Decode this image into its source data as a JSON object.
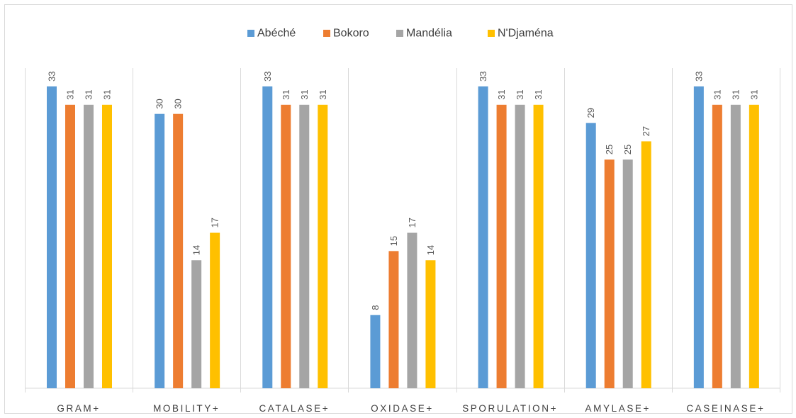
{
  "chart_data": {
    "type": "bar",
    "categories": [
      "GRAM+",
      "MOBILITY+",
      "CATALASE+",
      "OXIDASE+",
      "SPORULATION+",
      "AMYLASE+",
      "CASEINASE+"
    ],
    "series": [
      {
        "name": "Abéché",
        "values": [
          33,
          30,
          33,
          8,
          33,
          29,
          33
        ],
        "color": "#5b9bd5"
      },
      {
        "name": "Bokoro",
        "values": [
          31,
          30,
          31,
          15,
          31,
          25,
          31
        ],
        "color": "#ed7d31"
      },
      {
        "name": "Mandélia",
        "values": [
          31,
          14,
          31,
          17,
          31,
          25,
          31
        ],
        "color": "#a5a5a5"
      },
      {
        "name": "N'Djaména",
        "values": [
          31,
          17,
          31,
          14,
          31,
          27,
          31
        ],
        "color": "#ffc000"
      }
    ],
    "ylim": [
      0,
      33
    ],
    "legend_position": "top",
    "grid": false,
    "category_separators": true,
    "data_labels": "rotated-vertical"
  }
}
